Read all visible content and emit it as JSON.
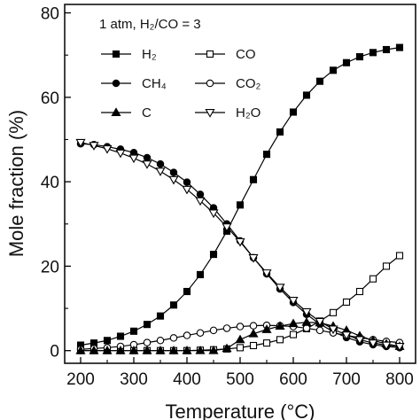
{
  "chart_data": {
    "type": "line",
    "title": "",
    "annotation": "1 atm, H₂/CO = 3",
    "xlabel": "Temperature (°C)",
    "ylabel": "Mole fraction (%)",
    "xlim": [
      170,
      830
    ],
    "ylim": [
      -3,
      82
    ],
    "xticks": [
      200,
      300,
      400,
      500,
      600,
      700,
      800
    ],
    "yticks": [
      0,
      20,
      40,
      60,
      80
    ],
    "grid": false,
    "legend_position": "top-left",
    "x": [
      200,
      225,
      250,
      275,
      300,
      325,
      350,
      375,
      400,
      425,
      450,
      475,
      500,
      525,
      550,
      575,
      600,
      625,
      650,
      675,
      700,
      725,
      750,
      775,
      800
    ],
    "series": [
      {
        "name": "H₂",
        "marker": "square-filled",
        "values": [
          1.3,
          1.8,
          2.4,
          3.4,
          4.6,
          6.2,
          8.2,
          10.8,
          14.0,
          18.0,
          22.8,
          28.3,
          34.5,
          40.5,
          46.5,
          51.8,
          56.5,
          60.5,
          63.8,
          66.4,
          68.2,
          69.6,
          70.6,
          71.3,
          71.8
        ]
      },
      {
        "name": "CO",
        "marker": "square-open",
        "values": [
          0.0,
          0.0,
          0.0,
          0.0,
          0.0,
          0.0,
          0.0,
          0.0,
          0.0,
          0.1,
          0.2,
          0.4,
          0.7,
          1.2,
          1.8,
          2.6,
          3.8,
          5.2,
          7.0,
          9.0,
          11.5,
          14.0,
          17.0,
          20.0,
          22.5
        ]
      },
      {
        "name": "CH₄",
        "marker": "circle-filled",
        "values": [
          49.0,
          48.8,
          48.3,
          47.7,
          46.9,
          45.7,
          44.2,
          42.2,
          39.9,
          37.0,
          33.8,
          30.0,
          26.0,
          22.0,
          18.2,
          14.6,
          11.4,
          8.6,
          6.3,
          4.5,
          3.1,
          2.1,
          1.4,
          1.0,
          0.7
        ]
      },
      {
        "name": "CO₂",
        "marker": "circle-open",
        "values": [
          0.3,
          0.5,
          0.7,
          1.0,
          1.4,
          1.9,
          2.4,
          3.0,
          3.6,
          4.2,
          4.8,
          5.3,
          5.7,
          5.9,
          6.0,
          5.9,
          5.7,
          5.3,
          4.8,
          4.2,
          3.6,
          3.1,
          2.6,
          2.2,
          1.9
        ]
      },
      {
        "name": "C",
        "marker": "triangle-up-filled",
        "values": [
          0.0,
          0.0,
          0.0,
          0.0,
          0.0,
          0.0,
          0.0,
          0.0,
          0.0,
          0.0,
          0.0,
          0.5,
          2.6,
          4.0,
          5.0,
          5.8,
          6.4,
          6.7,
          6.6,
          5.8,
          4.8,
          3.5,
          2.4,
          1.6,
          1.0
        ]
      },
      {
        "name": "H₂O",
        "marker": "triangle-down-open",
        "values": [
          49.3,
          48.6,
          47.8,
          46.8,
          45.6,
          44.2,
          42.5,
          40.5,
          38.2,
          35.5,
          32.6,
          29.3,
          25.8,
          22.0,
          18.4,
          15.0,
          11.9,
          9.2,
          6.9,
          5.1,
          3.7,
          2.6,
          1.8,
          1.3,
          1.0
        ]
      }
    ]
  }
}
